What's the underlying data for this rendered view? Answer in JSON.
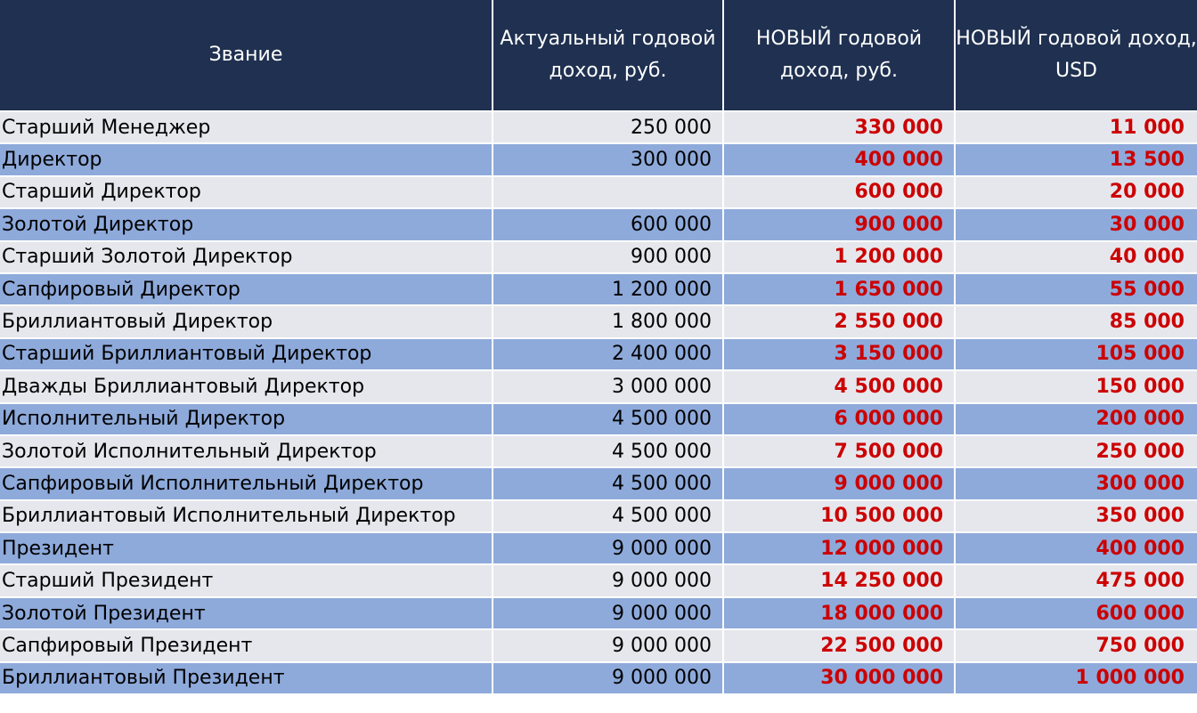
{
  "header": {
    "rank": "Звание",
    "current": "Актуальный годовой доход, руб.",
    "new_rub": "НОВЫЙ годовой доход, руб.",
    "new_usd": "НОВЫЙ годовой доход, USD"
  },
  "colors": {
    "header_bg": "#1f3050",
    "row_light": "#e6e7ec",
    "row_blue": "#8eaadb",
    "new_value": "#cc0000"
  },
  "rows": [
    {
      "rank": "Старший Менеджер",
      "current": "250 000",
      "new_rub": "330 000",
      "new_usd": "11 000"
    },
    {
      "rank": "Директор",
      "current": "300 000",
      "new_rub": "400 000",
      "new_usd": "13 500"
    },
    {
      "rank": "Старший Директор",
      "current": "",
      "new_rub": "600 000",
      "new_usd": "20 000"
    },
    {
      "rank": "Золотой Директор",
      "current": "600 000",
      "new_rub": "900 000",
      "new_usd": "30 000"
    },
    {
      "rank": "Старший Золотой Директор",
      "current": "900 000",
      "new_rub": "1 200 000",
      "new_usd": "40 000"
    },
    {
      "rank": "Сапфировый Директор",
      "current": "1 200 000",
      "new_rub": "1 650 000",
      "new_usd": "55 000"
    },
    {
      "rank": "Бриллиантовый Директор",
      "current": "1 800 000",
      "new_rub": "2 550 000",
      "new_usd": "85 000"
    },
    {
      "rank": "Старший Бриллиантовый Директор",
      "current": "2 400 000",
      "new_rub": "3 150 000",
      "new_usd": "105 000"
    },
    {
      "rank": "Дважды Бриллиантовый Директор",
      "current": "3 000 000",
      "new_rub": "4 500 000",
      "new_usd": "150 000"
    },
    {
      "rank": "Исполнительный Директор",
      "current": "4 500 000",
      "new_rub": "6 000 000",
      "new_usd": "200 000"
    },
    {
      "rank": "Золотой Исполнительный Директор",
      "current": "4 500 000",
      "new_rub": "7 500 000",
      "new_usd": "250 000"
    },
    {
      "rank": "Сапфировый Исполнительный Директор",
      "current": "4 500 000",
      "new_rub": "9 000 000",
      "new_usd": "300 000"
    },
    {
      "rank": "Бриллиантовый Исполнительный Директор",
      "current": "4 500 000",
      "new_rub": "10 500 000",
      "new_usd": "350 000"
    },
    {
      "rank": "Президент",
      "current": "9 000 000",
      "new_rub": "12 000 000",
      "new_usd": "400 000"
    },
    {
      "rank": "Старший Президент",
      "current": "9 000 000",
      "new_rub": "14 250 000",
      "new_usd": "475 000"
    },
    {
      "rank": "Золотой Президент",
      "current": "9 000 000",
      "new_rub": "18 000 000",
      "new_usd": "600 000"
    },
    {
      "rank": "Сапфировый Президент",
      "current": "9 000 000",
      "new_rub": "22 500 000",
      "new_usd": "750 000"
    },
    {
      "rank": "Бриллиантовый Президент",
      "current": "9 000 000",
      "new_rub": "30 000 000",
      "new_usd": "1 000 000"
    }
  ]
}
